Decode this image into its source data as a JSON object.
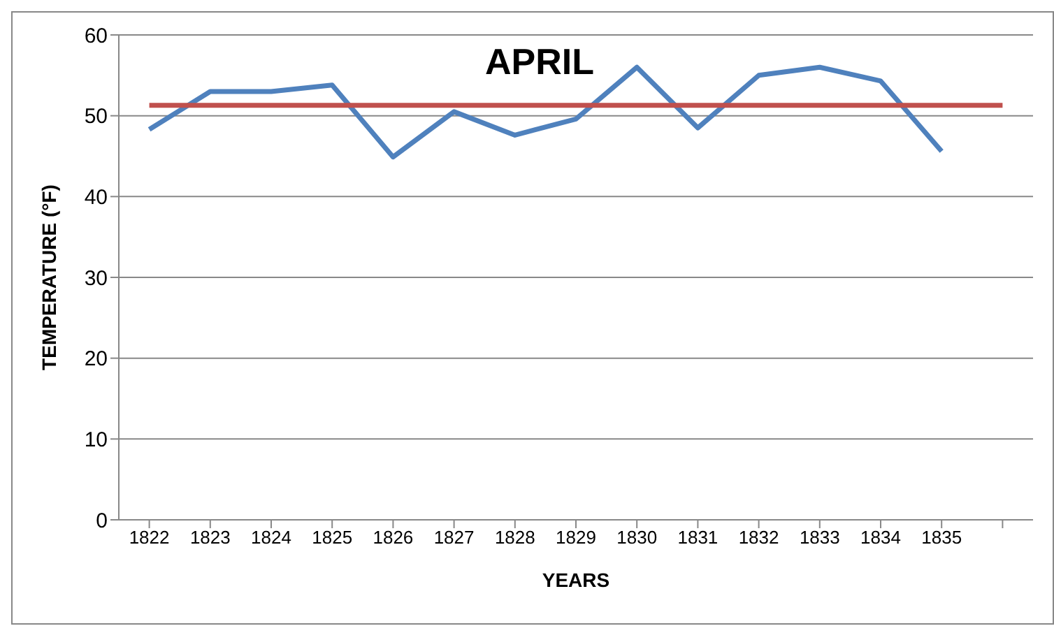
{
  "chart_data": {
    "type": "line",
    "title": "APRIL",
    "xlabel": "YEARS",
    "ylabel": "TEMPERATURE (°F)",
    "categories": [
      "1822",
      "1823",
      "1824",
      "1825",
      "1826",
      "1827",
      "1828",
      "1829",
      "1830",
      "1831",
      "1832",
      "1833",
      "1834",
      "1835",
      null
    ],
    "series": [
      {
        "color": "#4f81bd",
        "values": [
          48.3,
          53,
          53,
          53.8,
          44.9,
          50.5,
          47.6,
          49.6,
          56,
          48.5,
          55,
          56,
          54.3,
          45.6,
          null
        ]
      },
      {
        "color": "#c0504d",
        "values": [
          51.3,
          51.3,
          51.3,
          51.3,
          51.3,
          51.3,
          51.3,
          51.3,
          51.3,
          51.3,
          51.3,
          51.3,
          51.3,
          51.3,
          51.3
        ]
      }
    ],
    "ylim": [
      0,
      60
    ],
    "yticks": [
      0,
      10,
      20,
      30,
      40,
      50,
      60
    ],
    "grid": "y",
    "legend": false,
    "marker": "none",
    "line_style": "solid"
  }
}
